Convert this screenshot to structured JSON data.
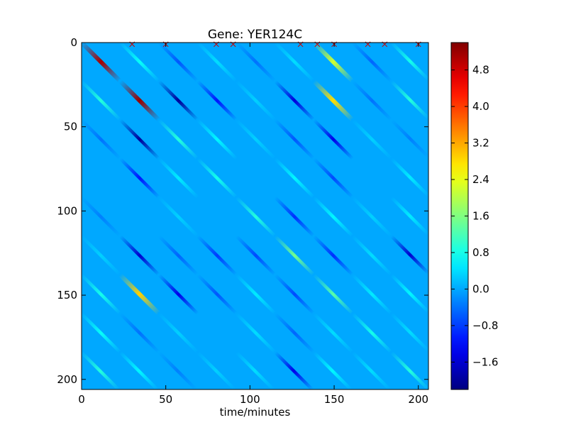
{
  "chart_data": {
    "type": "heatmap",
    "title": "Gene: YER124C",
    "xlabel": "time/minutes",
    "ylabel": "",
    "xlim": [
      0,
      206
    ],
    "ylim": [
      206,
      0
    ],
    "x_ticks": [
      0,
      50,
      100,
      150,
      200
    ],
    "y_ticks": [
      0,
      50,
      100,
      150,
      200
    ],
    "colormap": "jet",
    "colorbar": {
      "range": [
        -2.2,
        5.4
      ],
      "ticks": [
        {
          "value": -1.6,
          "label": "−1.6"
        },
        {
          "value": -0.8,
          "label": "−0.8"
        },
        {
          "value": 0.0,
          "label": "0.0"
        },
        {
          "value": 0.8,
          "label": "0.8"
        },
        {
          "value": 1.6,
          "label": "1.6"
        },
        {
          "value": 2.4,
          "label": "2.4"
        },
        {
          "value": 3.2,
          "label": "3.2"
        },
        {
          "value": 4.0,
          "label": "4.0"
        },
        {
          "value": 4.8,
          "label": "4.8"
        }
      ]
    },
    "background_value": 0.0,
    "block_edges": [
      0,
      23,
      46,
      69,
      92,
      115,
      138,
      161,
      184,
      206
    ],
    "diagonal_streaks": [
      {
        "row_block": 0,
        "col_block": 0,
        "value": 5.1
      },
      {
        "row_block": 1,
        "col_block": 1,
        "value": 5.2
      },
      {
        "row_block": 0,
        "col_block": 1,
        "value": 0.7
      },
      {
        "row_block": 0,
        "col_block": 2,
        "value": -0.6
      },
      {
        "row_block": 0,
        "col_block": 3,
        "value": 0.4
      },
      {
        "row_block": 0,
        "col_block": 4,
        "value": -0.4
      },
      {
        "row_block": 0,
        "col_block": 5,
        "value": 0.4
      },
      {
        "row_block": 0,
        "col_block": 6,
        "value": 2.2
      },
      {
        "row_block": 0,
        "col_block": 7,
        "value": -0.5
      },
      {
        "row_block": 0,
        "col_block": 8,
        "value": 0.8
      },
      {
        "row_block": 1,
        "col_block": 0,
        "value": 0.9
      },
      {
        "row_block": 1,
        "col_block": 2,
        "value": -2.0
      },
      {
        "row_block": 1,
        "col_block": 3,
        "value": -1.1
      },
      {
        "row_block": 1,
        "col_block": 4,
        "value": 0.3
      },
      {
        "row_block": 1,
        "col_block": 5,
        "value": -1.5
      },
      {
        "row_block": 1,
        "col_block": 6,
        "value": 2.8
      },
      {
        "row_block": 1,
        "col_block": 7,
        "value": -0.4
      },
      {
        "row_block": 1,
        "col_block": 8,
        "value": 0.9
      },
      {
        "row_block": 2,
        "col_block": 0,
        "value": -0.4
      },
      {
        "row_block": 2,
        "col_block": 1,
        "value": -2.0
      },
      {
        "row_block": 2,
        "col_block": 2,
        "value": 0.9
      },
      {
        "row_block": 2,
        "col_block": 3,
        "value": 0.6
      },
      {
        "row_block": 2,
        "col_block": 4,
        "value": 0.3
      },
      {
        "row_block": 2,
        "col_block": 5,
        "value": -0.6
      },
      {
        "row_block": 2,
        "col_block": 6,
        "value": -1.4
      },
      {
        "row_block": 2,
        "col_block": 7,
        "value": 0.3
      },
      {
        "row_block": 2,
        "col_block": 8,
        "value": -0.3
      },
      {
        "row_block": 3,
        "col_block": 1,
        "value": -1.1
      },
      {
        "row_block": 3,
        "col_block": 2,
        "value": 0.5
      },
      {
        "row_block": 3,
        "col_block": 3,
        "value": 0.8
      },
      {
        "row_block": 3,
        "col_block": 5,
        "value": 0.6
      },
      {
        "row_block": 3,
        "col_block": 6,
        "value": -0.7
      },
      {
        "row_block": 3,
        "col_block": 8,
        "value": 0.5
      },
      {
        "row_block": 4,
        "col_block": 0,
        "value": -0.3
      },
      {
        "row_block": 4,
        "col_block": 2,
        "value": 0.3
      },
      {
        "row_block": 4,
        "col_block": 4,
        "value": 0.9
      },
      {
        "row_block": 4,
        "col_block": 5,
        "value": -0.9
      },
      {
        "row_block": 4,
        "col_block": 6,
        "value": 0.6
      },
      {
        "row_block": 4,
        "col_block": 7,
        "value": 0.3
      },
      {
        "row_block": 4,
        "col_block": 8,
        "value": 0.5
      },
      {
        "row_block": 5,
        "col_block": 0,
        "value": 0.3
      },
      {
        "row_block": 5,
        "col_block": 1,
        "value": -1.6
      },
      {
        "row_block": 5,
        "col_block": 2,
        "value": -0.5
      },
      {
        "row_block": 5,
        "col_block": 3,
        "value": -0.8
      },
      {
        "row_block": 5,
        "col_block": 4,
        "value": -0.7
      },
      {
        "row_block": 5,
        "col_block": 5,
        "value": 1.5
      },
      {
        "row_block": 5,
        "col_block": 6,
        "value": -0.9
      },
      {
        "row_block": 5,
        "col_block": 7,
        "value": 0.4
      },
      {
        "row_block": 5,
        "col_block": 8,
        "value": -1.6
      },
      {
        "row_block": 6,
        "col_block": 0,
        "value": 0.8
      },
      {
        "row_block": 6,
        "col_block": 1,
        "value": 2.9
      },
      {
        "row_block": 6,
        "col_block": 2,
        "value": -1.4
      },
      {
        "row_block": 6,
        "col_block": 3,
        "value": -0.6
      },
      {
        "row_block": 6,
        "col_block": 4,
        "value": 0.5
      },
      {
        "row_block": 6,
        "col_block": 5,
        "value": -0.7
      },
      {
        "row_block": 6,
        "col_block": 6,
        "value": 1.3
      },
      {
        "row_block": 6,
        "col_block": 7,
        "value": 0.5
      },
      {
        "row_block": 6,
        "col_block": 8,
        "value": 0.6
      },
      {
        "row_block": 7,
        "col_block": 0,
        "value": 0.7
      },
      {
        "row_block": 7,
        "col_block": 1,
        "value": -0.4
      },
      {
        "row_block": 7,
        "col_block": 2,
        "value": 0.3
      },
      {
        "row_block": 7,
        "col_block": 4,
        "value": 0.4
      },
      {
        "row_block": 7,
        "col_block": 5,
        "value": -0.5
      },
      {
        "row_block": 7,
        "col_block": 6,
        "value": 0.4
      },
      {
        "row_block": 7,
        "col_block": 7,
        "value": 0.8
      },
      {
        "row_block": 7,
        "col_block": 8,
        "value": 0.4
      },
      {
        "row_block": 8,
        "col_block": 0,
        "value": 0.9
      },
      {
        "row_block": 8,
        "col_block": 1,
        "value": 0.6
      },
      {
        "row_block": 8,
        "col_block": 2,
        "value": -0.3
      },
      {
        "row_block": 8,
        "col_block": 3,
        "value": 0.3
      },
      {
        "row_block": 8,
        "col_block": 4,
        "value": 0.4
      },
      {
        "row_block": 8,
        "col_block": 5,
        "value": -1.4
      },
      {
        "row_block": 8,
        "col_block": 6,
        "value": 0.6
      },
      {
        "row_block": 8,
        "col_block": 7,
        "value": 0.4
      },
      {
        "row_block": 8,
        "col_block": 8,
        "value": 0.9
      }
    ],
    "markers": {
      "shape": "x",
      "color": "#cc0000",
      "y": 1,
      "x": [
        30,
        50,
        80,
        90,
        130,
        140,
        150,
        170,
        180,
        200
      ]
    }
  }
}
